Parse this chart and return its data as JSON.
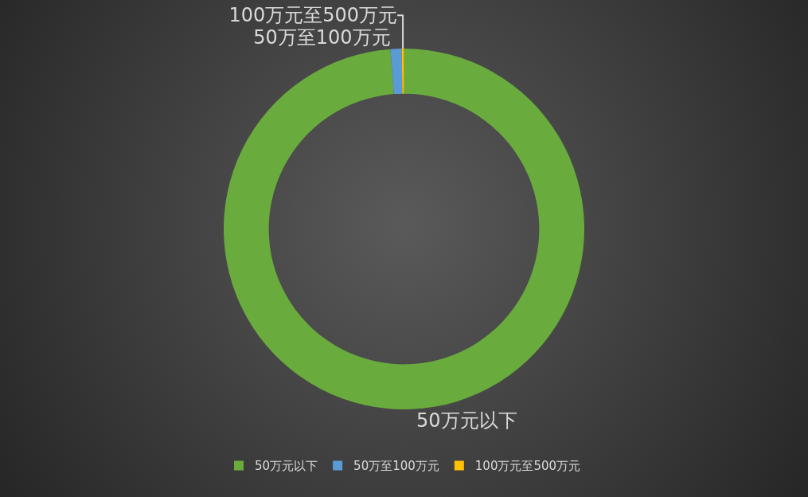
{
  "chart_data": {
    "type": "donut",
    "categories": [
      "50万元以下",
      "50万至100万元",
      "100万元至500万元"
    ],
    "values": [
      98.8,
      1.0,
      0.2
    ],
    "colors": [
      "#6aab3e",
      "#5b9bd5",
      "#ffc000"
    ],
    "legend": "bottom"
  }
}
